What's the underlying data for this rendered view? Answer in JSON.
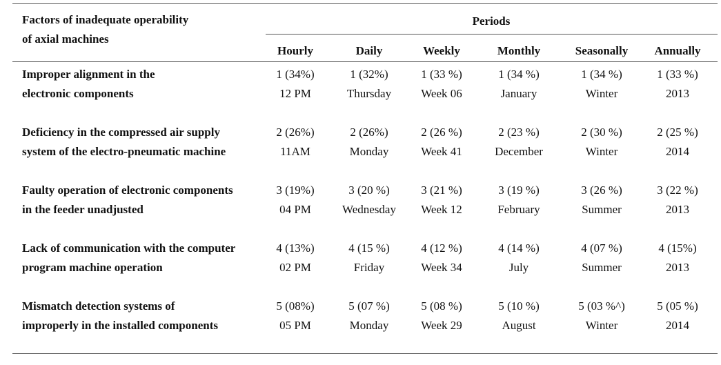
{
  "header": {
    "factor_title_line1": "Factors of inadequate operability",
    "factor_title_line2": "of axial machines",
    "periods_label": "Periods",
    "columns": [
      "Hourly",
      "Daily",
      "Weekly",
      "Monthly",
      "Seasonally",
      "Annually"
    ]
  },
  "rows": [
    {
      "factor": [
        "Improper alignment in the",
        "electronic components"
      ],
      "rank": [
        "1 (34%)",
        "1 (32%)",
        "1 (33 %)",
        "1 (34 %)",
        "1 (34 %)",
        "1 (33 %)"
      ],
      "period": [
        "12 PM",
        "Thursday",
        "Week 06",
        "January",
        "Winter",
        "2013"
      ]
    },
    {
      "factor": [
        "Deficiency in the compressed air supply",
        "system of the electro-pneumatic machine"
      ],
      "rank": [
        "2 (26%)",
        "2 (26%)",
        "2 (26 %)",
        "2 (23 %)",
        "2 (30 %)",
        "2 (25 %)"
      ],
      "period": [
        "11AM",
        "Monday",
        "Week 41",
        "December",
        "Winter",
        "2014"
      ]
    },
    {
      "factor": [
        "Faulty operation of electronic components",
        "in the feeder unadjusted"
      ],
      "rank": [
        "3 (19%)",
        "3 (20 %)",
        "3 (21 %)",
        "3 (19 %)",
        "3 (26 %)",
        "3 (22 %)"
      ],
      "period": [
        "04 PM",
        "Wednesday",
        "Week 12",
        "February",
        "Summer",
        "2013"
      ]
    },
    {
      "factor": [
        "Lack of communication with the computer",
        "program machine operation"
      ],
      "rank": [
        "4 (13%)",
        "4 (15 %)",
        "4 (12 %)",
        "4 (14 %)",
        "4 (07 %)",
        "4 (15%)"
      ],
      "period": [
        "02 PM",
        "Friday",
        "Week 34",
        "July",
        "Summer",
        "2013"
      ]
    },
    {
      "factor": [
        "Mismatch detection systems of",
        "improperly in the installed components"
      ],
      "rank": [
        "5 (08%)",
        "5 (07 %)",
        "5 (08 %)",
        "5 (10 %)",
        "5 (03 %^)",
        "5 (05 %)"
      ],
      "period": [
        "05 PM",
        "Monday",
        "Week 29",
        "August",
        "Winter",
        "2014"
      ]
    }
  ]
}
